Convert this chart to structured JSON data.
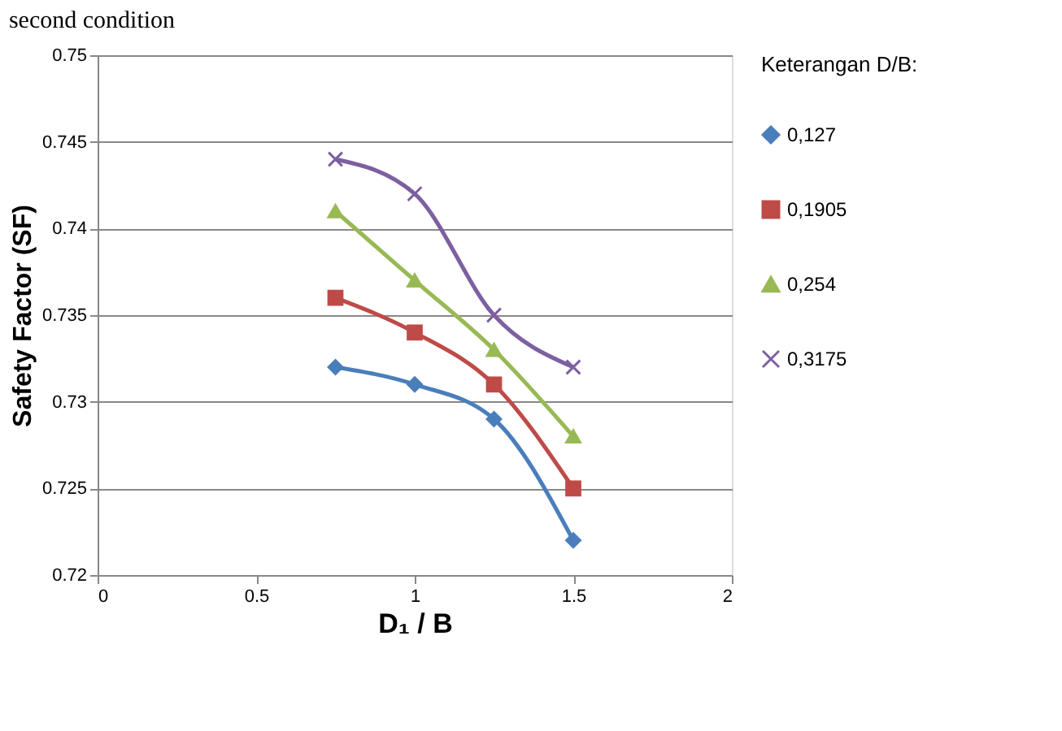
{
  "chart_data": {
    "type": "line",
    "title": "second condition",
    "xlabel": "D₁ / B",
    "ylabel": "Safety Factor (SF)",
    "legend_title": "Keterangan D/B:",
    "x": [
      0.75,
      1,
      1.25,
      1.5
    ],
    "series": [
      {
        "name": "0,127",
        "color": "#4a7ebb",
        "marker": "diamond",
        "values": [
          0.732,
          0.731,
          0.729,
          0.722
        ]
      },
      {
        "name": "0,1905",
        "color": "#be4b48",
        "marker": "square",
        "values": [
          0.736,
          0.734,
          0.731,
          0.725
        ]
      },
      {
        "name": "0,254",
        "color": "#98b954",
        "marker": "triangle",
        "values": [
          0.741,
          0.737,
          0.733,
          0.728
        ]
      },
      {
        "name": "0,3175",
        "color": "#7d60a0",
        "marker": "cross",
        "values": [
          0.744,
          0.742,
          0.735,
          0.732
        ]
      }
    ],
    "xlim": [
      0,
      2
    ],
    "xticks": [
      0,
      0.5,
      1,
      1.5,
      2
    ],
    "ylim": [
      0.72,
      0.75
    ],
    "yticks": [
      0.72,
      0.725,
      0.73,
      0.735,
      0.74,
      0.745,
      0.75
    ],
    "grid": "y",
    "legend": "right",
    "line_style": "solid"
  }
}
